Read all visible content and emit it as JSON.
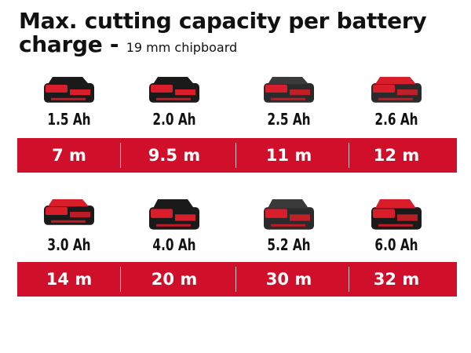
{
  "title": {
    "main": "Max. cutting capacity per battery charge -",
    "sub": "19 mm chipboard"
  },
  "colors": {
    "bar": "#d0102a",
    "text": "#111111",
    "bar_text": "#ffffff"
  },
  "rows": [
    {
      "batteries": [
        {
          "capacity": "1.5 Ah",
          "cut_length": "7 m"
        },
        {
          "capacity": "2.0 Ah",
          "cut_length": "9.5 m"
        },
        {
          "capacity": "2.5 Ah",
          "cut_length": "11 m"
        },
        {
          "capacity": "2.6 Ah",
          "cut_length": "12 m"
        }
      ]
    },
    {
      "batteries": [
        {
          "capacity": "3.0 Ah",
          "cut_length": "14 m"
        },
        {
          "capacity": "4.0 Ah",
          "cut_length": "20 m"
        },
        {
          "capacity": "5.2 Ah",
          "cut_length": "30 m"
        },
        {
          "capacity": "6.0 Ah",
          "cut_length": "32 m"
        }
      ]
    }
  ]
}
